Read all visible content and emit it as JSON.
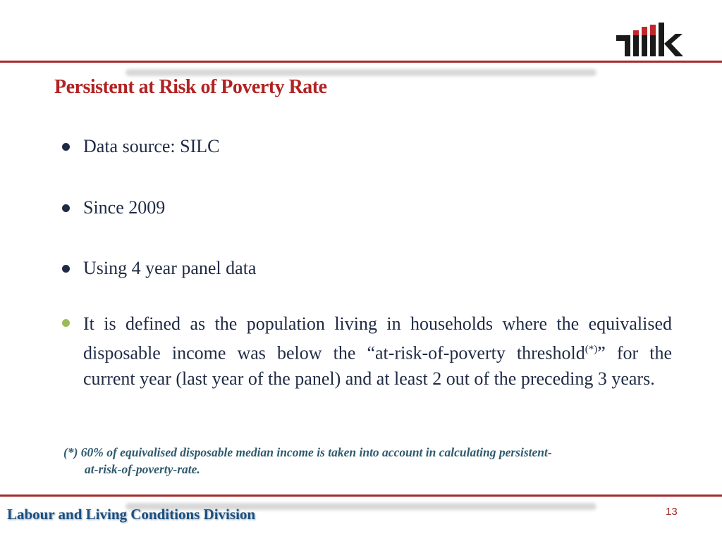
{
  "logo": {
    "text": "TÜİK",
    "colors": {
      "dark": "#1a1a1a",
      "accent": "#c0272d"
    }
  },
  "slide": {
    "title": "Persistent at Risk of Poverty Rate",
    "bullets": [
      {
        "text": "Data source: SILC",
        "color": "#1f2a44"
      },
      {
        "text": "Since 2009",
        "color": "#1f2a44"
      },
      {
        "text": "Using 4 year panel data",
        "color": "#1f2a44"
      }
    ],
    "definition": {
      "before": "It is defined as the population living in households where the equivalised disposable income was below the “at-risk-of-poverty threshold",
      "sup": "(*)",
      "after": "” for the current year (last year of the panel) and at least 2 out of the preceding 3 years.",
      "bullet_color": "#9bbb59"
    },
    "footnote": {
      "line1": "(*) 60% of equivalised disposable median income is taken into account in calculating  persistent-",
      "line2": "at-risk-of-poverty-rate."
    }
  },
  "footer": {
    "division": "Labour and Living Conditions Division",
    "page_number": "13"
  }
}
